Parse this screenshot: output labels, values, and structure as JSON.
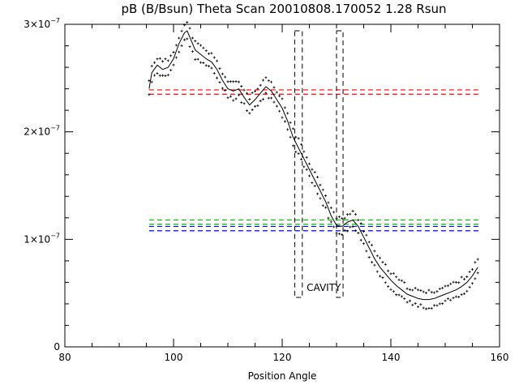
{
  "chart_data": {
    "type": "scatter",
    "title": "pB (B/Bsun) Theta Scan 20010808.170052 1.28 Rsun",
    "xlabel": "Position Angle",
    "ylabel": "",
    "xlim": [
      80,
      160
    ],
    "ylim": [
      0,
      3e-07
    ],
    "xticks": [
      80,
      100,
      120,
      140,
      160
    ],
    "x_minor_step": 5,
    "yticks": [
      {
        "value": 0,
        "mant": "0",
        "exp": ""
      },
      {
        "value": 1e-07,
        "mant": "1×10",
        "exp": "−7"
      },
      {
        "value": 2e-07,
        "mant": "2×10",
        "exp": "−7"
      },
      {
        "value": 3e-07,
        "mant": "3×10",
        "exp": "−7"
      }
    ],
    "grid": false,
    "annotation": {
      "text": "CAVITY",
      "x": 124.5,
      "y": 5.2e-08,
      "color": "#ff0000"
    },
    "series": [
      {
        "style": "solid-line",
        "color": "#000000",
        "x": [
          95.5,
          96,
          97,
          98,
          99,
          100,
          101,
          102,
          102.5,
          103,
          104,
          105,
          106,
          107,
          108,
          109,
          110,
          111,
          112,
          113,
          114,
          115,
          116,
          117,
          118,
          119,
          120,
          121,
          122,
          123,
          124,
          125,
          126,
          127,
          128,
          129,
          130,
          131,
          132,
          133,
          134,
          135,
          136,
          137,
          138,
          139,
          140,
          141,
          142,
          143,
          144,
          145,
          146,
          147,
          148,
          149,
          150,
          151,
          152,
          153,
          154,
          155,
          156
        ],
        "y": [
          2.4e-07,
          2.55e-07,
          2.62e-07,
          2.58e-07,
          2.6e-07,
          2.68e-07,
          2.82e-07,
          2.92e-07,
          2.94e-07,
          2.88e-07,
          2.76e-07,
          2.72e-07,
          2.68e-07,
          2.65e-07,
          2.58e-07,
          2.48e-07,
          2.4e-07,
          2.38e-07,
          2.4e-07,
          2.32e-07,
          2.25e-07,
          2.3e-07,
          2.36e-07,
          2.42e-07,
          2.38e-07,
          2.3e-07,
          2.22e-07,
          2.1e-07,
          1.95e-07,
          1.85e-07,
          1.75e-07,
          1.65e-07,
          1.55e-07,
          1.45e-07,
          1.35e-07,
          1.22e-07,
          1.13e-07,
          1.12e-07,
          1.16e-07,
          1.18e-07,
          1.12e-07,
          1.02e-07,
          9.2e-08,
          8.2e-08,
          7.4e-08,
          6.8e-08,
          6.2e-08,
          5.7e-08,
          5.3e-08,
          4.9e-08,
          4.7e-08,
          4.5e-08,
          4.4e-08,
          4.4e-08,
          4.5e-08,
          4.7e-08,
          4.9e-08,
          5.1e-08,
          5.3e-08,
          5.6e-08,
          6e-08,
          6.6e-08,
          7.4e-08
        ]
      }
    ],
    "scatter_upper_offset": 7e-09,
    "scatter_lower_offset": 7e-09,
    "scatter_step": 0.5,
    "reference_lines": [
      {
        "y": 2.39e-07,
        "x": [
          95.5,
          156.5
        ],
        "color": "#ff0000",
        "style": "dashed"
      },
      {
        "y": 2.35e-07,
        "x": [
          95.5,
          156.5
        ],
        "color": "#ff0000",
        "style": "dashed"
      },
      {
        "y": 1.18e-07,
        "x": [
          95.5,
          156.5
        ],
        "color": "#00bb00",
        "style": "dashed"
      },
      {
        "y": 1.14e-07,
        "x": [
          95.5,
          156.5
        ],
        "color": "#00bb00",
        "style": "dashed"
      },
      {
        "y": 1.12e-07,
        "x": [
          95.5,
          156.5
        ],
        "color": "#0000ff",
        "style": "dashed"
      },
      {
        "y": 1.08e-07,
        "x": [
          95.5,
          156.5
        ],
        "color": "#0000ff",
        "style": "dashed"
      }
    ],
    "boxes": [
      {
        "x": [
          122.3,
          123.7
        ],
        "y": [
          4.6e-08,
          2.94e-07
        ],
        "color": "#000000",
        "style": "dashed"
      },
      {
        "x": [
          130.0,
          131.2
        ],
        "y": [
          4.6e-08,
          2.94e-07
        ],
        "color": "#000000",
        "style": "dashed"
      }
    ]
  }
}
